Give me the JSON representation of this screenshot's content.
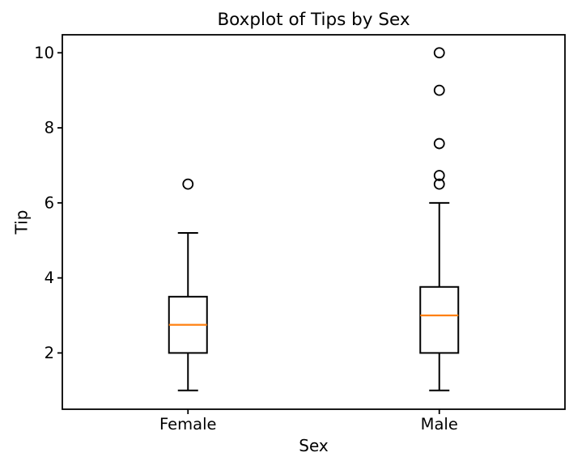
{
  "chart_data": {
    "type": "boxplot",
    "title": "Boxplot of Tips by Sex",
    "xlabel": "Sex",
    "ylabel": "Tip",
    "categories": [
      "Female",
      "Male"
    ],
    "positions": [
      1,
      2
    ],
    "xlim": [
      0.5,
      2.5
    ],
    "ylim": [
      0.5,
      10.48
    ],
    "yticks": [
      2,
      4,
      6,
      8,
      10
    ],
    "grid": false,
    "legend": "none",
    "colors": {
      "box": "#000000",
      "median": "#ff7f0e",
      "whisker": "#000000",
      "flier": "#000000",
      "background": "#ffffff",
      "text": "#000000"
    },
    "series": [
      {
        "name": "Female",
        "q1": 2.0,
        "median": 2.75,
        "q3": 3.5,
        "whisker_low": 1.0,
        "whisker_high": 5.2,
        "outliers": [
          6.5
        ]
      },
      {
        "name": "Male",
        "q1": 2.0,
        "median": 3.0,
        "q3": 3.76,
        "whisker_low": 1.0,
        "whisker_high": 6.0,
        "outliers": [
          6.5,
          6.73,
          7.58,
          9.0,
          10.0
        ]
      }
    ]
  }
}
